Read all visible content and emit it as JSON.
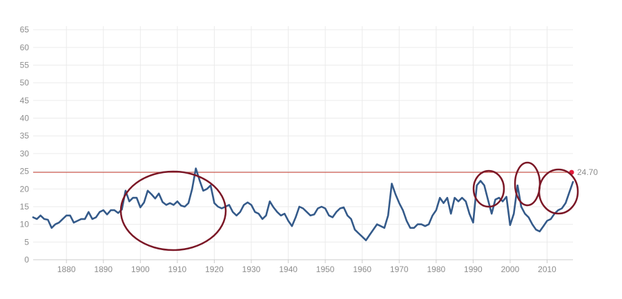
{
  "chart_data": {
    "type": "line",
    "title": "",
    "xlabel": "",
    "ylabel": "",
    "xlim": [
      1871,
      2017
    ],
    "ylim": [
      0,
      66
    ],
    "x_ticks": [
      "1880",
      "1890",
      "1900",
      "1910",
      "1920",
      "1930",
      "1940",
      "1950",
      "1960",
      "1970",
      "1980",
      "1990",
      "2000",
      "2010"
    ],
    "y_ticks": [
      "0",
      "5",
      "10",
      "15",
      "20",
      "25",
      "30",
      "35",
      "40",
      "45",
      "50",
      "55",
      "60",
      "65"
    ],
    "grid": true,
    "colors": {
      "line": "#345a8a",
      "reference": "#c0392b",
      "circles": "#7b1726",
      "grid": "#ebebeb",
      "text": "#8c8c8c"
    },
    "series": [
      {
        "points": [
          [
            1871,
            12
          ],
          [
            1872,
            11.5
          ],
          [
            1873,
            12.5
          ],
          [
            1874,
            11.5
          ],
          [
            1875,
            11.3
          ],
          [
            1876,
            9
          ],
          [
            1877,
            10
          ],
          [
            1878,
            10.5
          ],
          [
            1879,
            11.5
          ],
          [
            1880,
            12.5
          ],
          [
            1881,
            12.5
          ],
          [
            1882,
            10.5
          ],
          [
            1883,
            11
          ],
          [
            1884,
            11.5
          ],
          [
            1885,
            11.5
          ],
          [
            1886,
            13.5
          ],
          [
            1887,
            11.5
          ],
          [
            1888,
            12
          ],
          [
            1889,
            13.5
          ],
          [
            1890,
            14
          ],
          [
            1891,
            12.8
          ],
          [
            1892,
            14
          ],
          [
            1893,
            14
          ],
          [
            1894,
            13.2
          ],
          [
            1895,
            14.2
          ],
          [
            1896,
            19.5
          ],
          [
            1897,
            16.5
          ],
          [
            1898,
            17.5
          ],
          [
            1899,
            17.5
          ],
          [
            1900,
            14.8
          ],
          [
            1901,
            16.2
          ],
          [
            1902,
            19.5
          ],
          [
            1903,
            18.5
          ],
          [
            1904,
            17.3
          ],
          [
            1905,
            18.7
          ],
          [
            1906,
            16.3
          ],
          [
            1907,
            15.5
          ],
          [
            1908,
            16
          ],
          [
            1909,
            15.5
          ],
          [
            1910,
            16.5
          ],
          [
            1911,
            15.3
          ],
          [
            1912,
            15
          ],
          [
            1913,
            16
          ],
          [
            1914,
            20
          ],
          [
            1915,
            25.8
          ],
          [
            1916,
            22.5
          ],
          [
            1917,
            19.5
          ],
          [
            1918,
            20
          ],
          [
            1919,
            21
          ],
          [
            1920,
            16
          ],
          [
            1921,
            15
          ],
          [
            1922,
            14.5
          ],
          [
            1923,
            15
          ],
          [
            1924,
            15.5
          ],
          [
            1925,
            13.5
          ],
          [
            1926,
            12.5
          ],
          [
            1927,
            13.5
          ],
          [
            1928,
            15.5
          ],
          [
            1929,
            16.2
          ],
          [
            1930,
            15.5
          ],
          [
            1931,
            13.5
          ],
          [
            1932,
            13
          ],
          [
            1933,
            11.5
          ],
          [
            1934,
            12.5
          ],
          [
            1935,
            16.5
          ],
          [
            1936,
            14.8
          ],
          [
            1937,
            13.5
          ],
          [
            1938,
            12.5
          ],
          [
            1939,
            13
          ],
          [
            1940,
            11
          ],
          [
            1941,
            9.5
          ],
          [
            1942,
            12
          ],
          [
            1943,
            15
          ],
          [
            1944,
            14.5
          ],
          [
            1945,
            13.5
          ],
          [
            1946,
            12.5
          ],
          [
            1947,
            12.8
          ],
          [
            1948,
            14.5
          ],
          [
            1949,
            15
          ],
          [
            1950,
            14.5
          ],
          [
            1951,
            12.5
          ],
          [
            1952,
            12
          ],
          [
            1953,
            13.5
          ],
          [
            1954,
            14.5
          ],
          [
            1955,
            14.8
          ],
          [
            1956,
            12.5
          ],
          [
            1957,
            11.5
          ],
          [
            1958,
            8.5
          ],
          [
            1959,
            7.5
          ],
          [
            1960,
            6.5
          ],
          [
            1961,
            5.5
          ],
          [
            1962,
            7
          ],
          [
            1963,
            8.5
          ],
          [
            1964,
            10
          ],
          [
            1965,
            9.5
          ],
          [
            1966,
            9
          ],
          [
            1967,
            12.5
          ],
          [
            1968,
            21.5
          ],
          [
            1969,
            18.5
          ],
          [
            1970,
            16
          ],
          [
            1971,
            14
          ],
          [
            1972,
            11
          ],
          [
            1973,
            9
          ],
          [
            1974,
            9
          ],
          [
            1975,
            10
          ],
          [
            1976,
            10
          ],
          [
            1977,
            9.5
          ],
          [
            1978,
            10
          ],
          [
            1979,
            12.5
          ],
          [
            1980,
            14
          ],
          [
            1981,
            17.5
          ],
          [
            1982,
            16
          ],
          [
            1983,
            17.5
          ],
          [
            1984,
            13
          ],
          [
            1985,
            17.5
          ],
          [
            1986,
            16.5
          ],
          [
            1987,
            17.5
          ],
          [
            1988,
            16.5
          ],
          [
            1989,
            13
          ],
          [
            1990,
            10.5
          ],
          [
            1991,
            21
          ],
          [
            1992,
            22.3
          ],
          [
            1993,
            21
          ],
          [
            1994,
            17
          ],
          [
            1995,
            13
          ],
          [
            1996,
            17
          ],
          [
            1997,
            17.5
          ],
          [
            1998,
            16.5
          ],
          [
            1999,
            17.8
          ],
          [
            2000,
            9.8
          ],
          [
            2001,
            13
          ],
          [
            2002,
            21
          ],
          [
            2003,
            15
          ],
          [
            2004,
            13
          ],
          [
            2005,
            12
          ],
          [
            2006,
            10
          ],
          [
            2007,
            8.5
          ],
          [
            2008,
            8
          ],
          [
            2009,
            9.5
          ],
          [
            2010,
            11
          ],
          [
            2011,
            11.5
          ],
          [
            2012,
            13
          ],
          [
            2013,
            14
          ],
          [
            2014,
            14.5
          ],
          [
            2015,
            16
          ],
          [
            2016,
            19
          ],
          [
            2017,
            22
          ]
        ]
      }
    ],
    "reference_line": {
      "y": 24.7,
      "label": "24.70"
    }
  }
}
